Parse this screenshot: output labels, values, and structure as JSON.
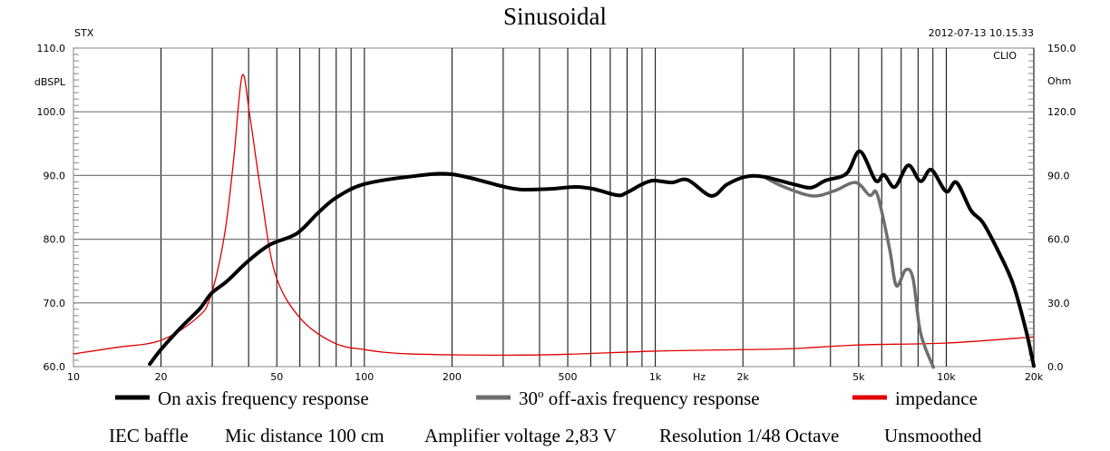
{
  "chart_data": {
    "type": "line",
    "title": "Sinusoidal",
    "top_left_label": "STX",
    "timestamp": "2012-07-13 10.15.33",
    "watermark": "CLIO",
    "x_scale": "log",
    "xlim": [
      10,
      20000
    ],
    "x_unit_label": "Hz",
    "x_ticks": [
      {
        "value": 10,
        "label": "10"
      },
      {
        "value": 20,
        "label": "20"
      },
      {
        "value": 50,
        "label": "50"
      },
      {
        "value": 100,
        "label": "100"
      },
      {
        "value": 200,
        "label": "200"
      },
      {
        "value": 500,
        "label": "500"
      },
      {
        "value": 1000,
        "label": "1k"
      },
      {
        "value": 2000,
        "label": "2k"
      },
      {
        "value": 5000,
        "label": "5k"
      },
      {
        "value": 10000,
        "label": "10k"
      },
      {
        "value": 20000,
        "label": "20k"
      }
    ],
    "ylabel_left": "dBSPL",
    "ylim_left": [
      60,
      110
    ],
    "y_ticks_left": [
      "60.0",
      "70.0",
      "80.0",
      "90.0",
      "100.0",
      "110.0"
    ],
    "ylabel_right": "Ohm",
    "ylim_right": [
      0,
      150
    ],
    "y_ticks_right": [
      "0.0",
      "30.0",
      "60.0",
      "90.0",
      "120.0",
      "150.0"
    ],
    "grid": true,
    "legend_position": "bottom",
    "series": [
      {
        "name": "On axis frequency response",
        "axis": "left",
        "color": "#000000",
        "points": [
          [
            18.3,
            60.4
          ],
          [
            20,
            62.7
          ],
          [
            23.6,
            66.3
          ],
          [
            27.2,
            69.1
          ],
          [
            29.8,
            71.5
          ],
          [
            33.7,
            73.4
          ],
          [
            39.7,
            76.5
          ],
          [
            47.2,
            79.1
          ],
          [
            58.6,
            80.9
          ],
          [
            69.2,
            84.1
          ],
          [
            79.9,
            86.5
          ],
          [
            99.1,
            88.6
          ],
          [
            142,
            89.8
          ],
          [
            199,
            90.2
          ],
          [
            298,
            88.3
          ],
          [
            344,
            87.8
          ],
          [
            438,
            87.9
          ],
          [
            529,
            88.2
          ],
          [
            611,
            87.9
          ],
          [
            740,
            86.9
          ],
          [
            797,
            87.3
          ],
          [
            899,
            88.6
          ],
          [
            984,
            89.2
          ],
          [
            1139,
            88.9
          ],
          [
            1292,
            89.3
          ],
          [
            1556,
            86.8
          ],
          [
            1764,
            88.6
          ],
          [
            2040,
            89.8
          ],
          [
            2360,
            89.8
          ],
          [
            3000,
            88.6
          ],
          [
            3436,
            88.1
          ],
          [
            3840,
            89.2
          ],
          [
            4540,
            90.3
          ],
          [
            5052,
            93.8
          ],
          [
            5720,
            89.2
          ],
          [
            6110,
            90.1
          ],
          [
            6660,
            88.2
          ],
          [
            7400,
            91.6
          ],
          [
            8160,
            89.1
          ],
          [
            8890,
            90.9
          ],
          [
            9990,
            87.5
          ],
          [
            10850,
            88.9
          ],
          [
            12170,
            84.5
          ],
          [
            13370,
            82.6
          ],
          [
            15100,
            78.1
          ],
          [
            16960,
            73.0
          ],
          [
            18770,
            65.8
          ],
          [
            20000,
            60.1
          ]
        ]
      },
      {
        "name": "30° off-axis frequency response",
        "axis": "left",
        "color": "#6e6e6e",
        "points": [
          [
            2360,
            89.8
          ],
          [
            2740,
            88.3
          ],
          [
            3460,
            86.8
          ],
          [
            4130,
            87.6
          ],
          [
            4880,
            88.9
          ],
          [
            5450,
            86.9
          ],
          [
            5720,
            87.5
          ],
          [
            5970,
            84.8
          ],
          [
            6410,
            78.1
          ],
          [
            6740,
            72.7
          ],
          [
            7260,
            75.2
          ],
          [
            7690,
            73.8
          ],
          [
            8160,
            65.3
          ],
          [
            9030,
            59.9
          ]
        ]
      },
      {
        "name": "impedance",
        "axis": "right",
        "color": "#e00000",
        "points": [
          [
            10,
            6
          ],
          [
            14,
            9
          ],
          [
            20,
            12.4
          ],
          [
            26.6,
            23
          ],
          [
            29.6,
            33
          ],
          [
            33,
            61.5
          ],
          [
            35.5,
            97
          ],
          [
            38,
            137
          ],
          [
            40.4,
            118
          ],
          [
            44,
            83
          ],
          [
            49.3,
            44
          ],
          [
            60,
            23
          ],
          [
            78,
            11.4
          ],
          [
            100,
            8
          ],
          [
            142,
            6
          ],
          [
            300,
            5.4
          ],
          [
            500,
            5.8
          ],
          [
            1000,
            7.3
          ],
          [
            2000,
            8
          ],
          [
            3000,
            8.5
          ],
          [
            5000,
            10.2
          ],
          [
            10000,
            11.1
          ],
          [
            20000,
            14
          ]
        ]
      }
    ],
    "legend": [
      {
        "label_main": "On axis frequency response",
        "color": "#000000"
      },
      {
        "label_pre": "30",
        "label_sup": "o",
        "label_main": " off-axis frequency response",
        "color": "#6e6e6e"
      },
      {
        "label_main": "impedance",
        "color": "#e00000"
      }
    ],
    "footer": [
      "IEC baffle",
      "Mic distance 100 cm",
      "Amplifier voltage 2,83 V",
      "Resolution 1/48 Octave",
      "Unsmoothed"
    ]
  }
}
